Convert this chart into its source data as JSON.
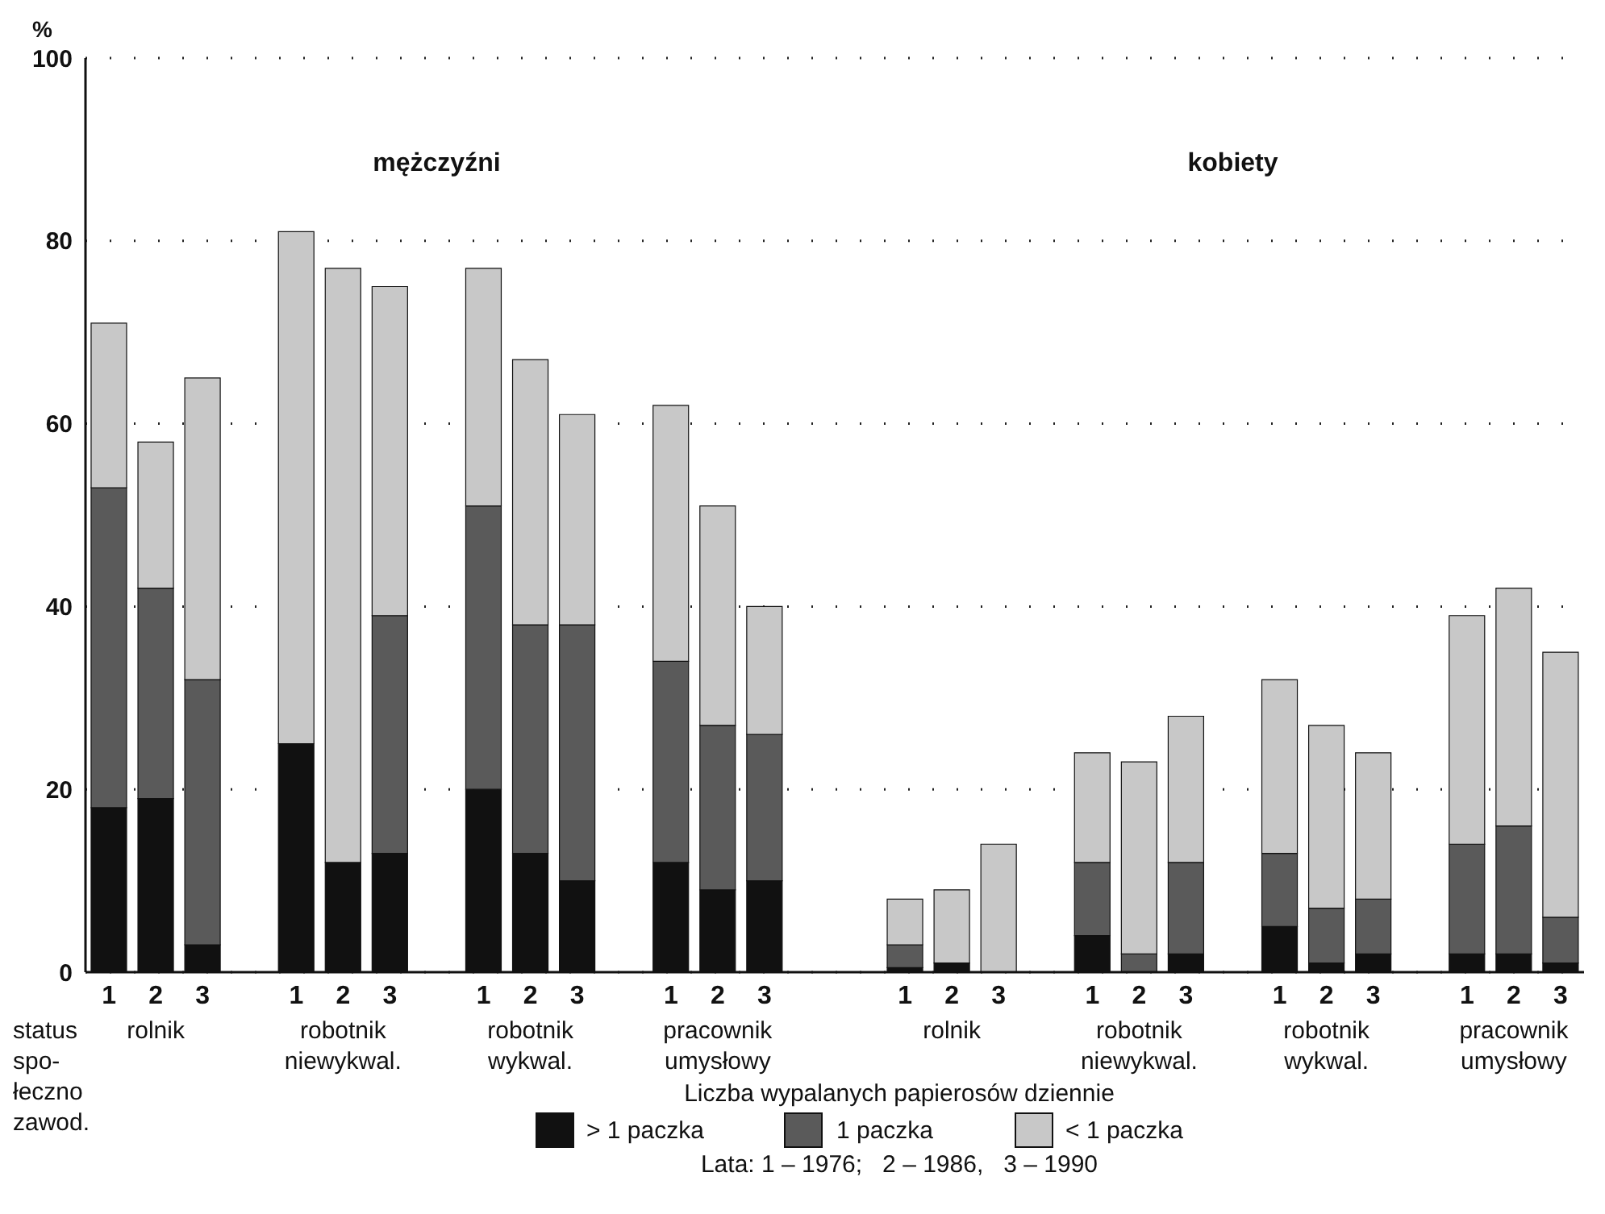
{
  "chart_data": {
    "type": "bar",
    "stacked": true,
    "ylabel": "%",
    "legend_title": "Liczba wypalanych papierosów dziennie",
    "categories": [
      "1",
      "2",
      "3",
      null,
      "1",
      "2",
      "3",
      null,
      "1",
      "2",
      "3",
      null,
      "1",
      "2",
      "3",
      null,
      null,
      "1",
      "2",
      "3",
      null,
      "1",
      "2",
      "3",
      null,
      "1",
      "2",
      "3",
      null,
      "1",
      "2",
      "3"
    ],
    "series": [
      {
        "name": "> 1 paczka",
        "color": "#111111",
        "values": [
          18,
          19,
          3,
          null,
          25,
          12,
          13,
          null,
          20,
          13,
          10,
          null,
          12,
          9,
          10,
          null,
          null,
          0.5,
          1,
          0,
          null,
          4,
          0,
          2,
          null,
          5,
          1,
          2,
          null,
          2,
          2,
          1
        ]
      },
      {
        "name": "1 paczka",
        "color": "#5a5a5a",
        "values": [
          35,
          23,
          29,
          null,
          0,
          0,
          26,
          null,
          31,
          25,
          28,
          null,
          22,
          18,
          16,
          null,
          null,
          2.5,
          0,
          0,
          null,
          8,
          2,
          10,
          null,
          8,
          6,
          6,
          null,
          12,
          14,
          5
        ]
      },
      {
        "name": "< 1 paczka",
        "color": "#c8c8c8",
        "values": [
          18,
          16,
          33,
          null,
          56,
          65,
          36,
          null,
          26,
          29,
          23,
          null,
          28,
          24,
          14,
          null,
          null,
          5,
          8,
          14,
          null,
          12,
          21,
          16,
          null,
          19,
          20,
          16,
          null,
          25,
          26,
          29
        ]
      }
    ],
    "ylim": [
      0,
      100
    ],
    "yticks": [
      0,
      20,
      40,
      60,
      80,
      100
    ],
    "grid": "y",
    "legend": "bottom",
    "annotations": [
      "mężczyźni",
      "kobiety",
      "status\nspo-\nłeczno\nzawod.",
      "rolnik",
      "robotnik\nniewykwal.",
      "robotnik\nwykwal.",
      "pracownik\numysłowy",
      "rolnik",
      "robotnik\nniewykwal.",
      "robotnik\nwykwal.",
      "pracownik\numysłowy",
      "Lata: 1 – 1976;   2 – 1986,   3 – 1990"
    ]
  }
}
